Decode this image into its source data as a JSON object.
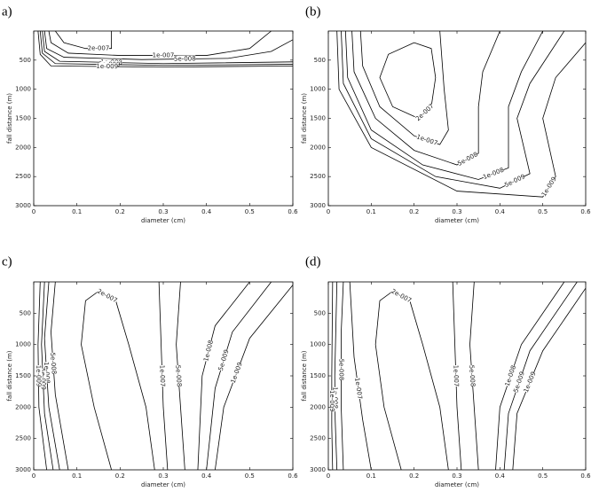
{
  "chart_data": [
    {
      "type": "contour",
      "panel_label": "a)",
      "xlabel": "diameter (cm)",
      "ylabel": "fall distance (m)",
      "color": "#000000",
      "xlim": [
        0,
        0.6
      ],
      "ylim": [
        3000,
        0
      ],
      "xticks": [
        0,
        0.1,
        0.2,
        0.3,
        0.4,
        0.5,
        0.6
      ],
      "yticks": [
        500,
        1000,
        1500,
        2000,
        2500,
        3000
      ],
      "series": [
        {
          "name": "2e-007",
          "x": [
            0.05,
            0.07,
            0.12,
            0.18,
            0.18
          ],
          "values": [
            0,
            200,
            300,
            300,
            0
          ]
        },
        {
          "name": "1e-007",
          "x": [
            0.035,
            0.04,
            0.08,
            0.2,
            0.4,
            0.5,
            0.55
          ],
          "values": [
            0,
            200,
            380,
            420,
            420,
            300,
            0
          ]
        },
        {
          "name": "5e-008",
          "x": [
            0.025,
            0.03,
            0.07,
            0.25,
            0.45,
            0.55,
            0.6
          ],
          "values": [
            0,
            300,
            450,
            490,
            470,
            350,
            150
          ]
        },
        {
          "name": "1e-008",
          "x": [
            0.02,
            0.025,
            0.06,
            0.3,
            0.6
          ],
          "values": [
            0,
            350,
            520,
            560,
            530
          ]
        },
        {
          "name": "5e-009",
          "x": [
            0.015,
            0.02,
            0.05,
            0.3,
            0.6
          ],
          "values": [
            0,
            380,
            560,
            590,
            570
          ]
        },
        {
          "name": "1e-009",
          "x": [
            0.01,
            0.015,
            0.04,
            0.3,
            0.6
          ],
          "values": [
            0,
            400,
            600,
            620,
            600
          ]
        }
      ]
    },
    {
      "type": "contour",
      "panel_label": "(b)",
      "xlabel": "diameter (cm)",
      "ylabel": "fall distance (m)",
      "color": "#000000",
      "xlim": [
        0,
        0.6
      ],
      "ylim": [
        3000,
        0
      ],
      "xticks": [
        0,
        0.1,
        0.2,
        0.3,
        0.4,
        0.5,
        0.6
      ],
      "yticks": [
        500,
        1000,
        1500,
        2000,
        2500,
        3000
      ],
      "series": [
        {
          "name": "2e-007",
          "x": [
            0.2,
            0.14,
            0.12,
            0.15,
            0.21,
            0.24,
            0.25,
            0.24,
            0.2
          ],
          "values": [
            200,
            400,
            800,
            1300,
            1500,
            1300,
            800,
            300,
            200
          ]
        },
        {
          "name": "1e-007",
          "x": [
            0.075,
            0.08,
            0.12,
            0.2,
            0.26,
            0.28,
            0.27,
            0.26
          ],
          "values": [
            0,
            600,
            1300,
            1800,
            1950,
            1700,
            1000,
            0
          ]
        },
        {
          "name": "5e-008",
          "x": [
            0.055,
            0.06,
            0.11,
            0.2,
            0.3,
            0.35,
            0.35,
            0.36,
            0.4
          ],
          "values": [
            0,
            700,
            1500,
            2050,
            2300,
            2100,
            1300,
            700,
            0
          ]
        },
        {
          "name": "1e-008",
          "x": [
            0.04,
            0.045,
            0.1,
            0.22,
            0.35,
            0.42,
            0.42,
            0.45,
            0.5
          ],
          "values": [
            0,
            800,
            1700,
            2300,
            2550,
            2350,
            1300,
            700,
            0
          ]
        },
        {
          "name": "5e-009",
          "x": [
            0.03,
            0.035,
            0.1,
            0.25,
            0.4,
            0.47,
            0.44,
            0.47,
            0.55
          ],
          "values": [
            0,
            900,
            1850,
            2500,
            2700,
            2450,
            1500,
            900,
            0
          ]
        },
        {
          "name": "1e-009",
          "x": [
            0.02,
            0.025,
            0.1,
            0.3,
            0.5,
            0.53,
            0.5,
            0.53,
            0.6
          ],
          "values": [
            0,
            1000,
            2000,
            2750,
            2850,
            2500,
            1500,
            800,
            200
          ]
        }
      ]
    },
    {
      "type": "contour",
      "panel_label": "c)",
      "xlabel": "diameter (cm)",
      "ylabel": "fall distance (m)",
      "color": "#000000",
      "xlim": [
        0,
        0.6
      ],
      "ylim": [
        3000,
        0
      ],
      "xticks": [
        0,
        0.1,
        0.2,
        0.3,
        0.4,
        0.5,
        0.6
      ],
      "yticks": [
        500,
        1000,
        1500,
        2000,
        2500,
        3000
      ],
      "series": [
        {
          "name": "2e-007",
          "x": [
            0.18,
            0.14,
            0.11,
            0.12,
            0.15,
            0.19,
            0.22,
            0.26,
            0.28
          ],
          "values": [
            3000,
            2000,
            1000,
            300,
            150,
            300,
            1000,
            2000,
            3000
          ]
        },
        {
          "name": "1e-007",
          "x": [
            0.29,
            0.295,
            0.3,
            0.31
          ],
          "values": [
            0,
            1000,
            2000,
            3000
          ]
        },
        {
          "name": "5e-008",
          "x": [
            0.34,
            0.33,
            0.34,
            0.35
          ],
          "values": [
            0,
            1000,
            2000,
            3000
          ]
        },
        {
          "name": "1e-008",
          "x": [
            0.5,
            0.42,
            0.39,
            0.38
          ],
          "values": [
            0,
            700,
            1500,
            3000
          ]
        },
        {
          "name": "5e-009",
          "x": [
            0.55,
            0.46,
            0.42,
            0.4
          ],
          "values": [
            0,
            800,
            1700,
            3000
          ]
        },
        {
          "name": "1e-009",
          "x": [
            0.6,
            0.5,
            0.44,
            0.42
          ],
          "values": [
            50,
            900,
            2000,
            3000
          ]
        },
        {
          "name": "5e-008",
          "x": [
            0.05,
            0.04,
            0.05,
            0.08
          ],
          "values": [
            0,
            800,
            1800,
            3000
          ]
        },
        {
          "name": "1e-008",
          "x": [
            0.035,
            0.025,
            0.035,
            0.06
          ],
          "values": [
            0,
            900,
            2000,
            3000
          ]
        },
        {
          "name": "5e-009",
          "x": [
            0.025,
            0.018,
            0.025,
            0.045
          ],
          "values": [
            0,
            1000,
            2100,
            3000
          ]
        },
        {
          "name": "1e-009",
          "x": [
            0.015,
            0.01,
            0.012,
            0.03
          ],
          "values": [
            0,
            1000,
            2000,
            3000
          ]
        }
      ]
    },
    {
      "type": "contour",
      "panel_label": "(d)",
      "xlabel": "diameter (cm)",
      "ylabel": "fall distance (m)",
      "color": "#000000",
      "xlim": [
        0,
        0.6
      ],
      "ylim": [
        3000,
        0
      ],
      "xticks": [
        0,
        0.1,
        0.2,
        0.3,
        0.4,
        0.5,
        0.6
      ],
      "yticks": [
        500,
        1000,
        1500,
        2000,
        2500,
        3000
      ],
      "series": [
        {
          "name": "2e-007",
          "x": [
            0.17,
            0.13,
            0.11,
            0.12,
            0.15,
            0.19,
            0.22,
            0.26,
            0.28
          ],
          "values": [
            3000,
            2000,
            1000,
            300,
            150,
            300,
            1000,
            2000,
            3000
          ]
        },
        {
          "name": "1e-007",
          "x": [
            0.29,
            0.295,
            0.3,
            0.31
          ],
          "values": [
            0,
            1000,
            2000,
            3000
          ]
        },
        {
          "name": "5e-008",
          "x": [
            0.34,
            0.33,
            0.34,
            0.35
          ],
          "values": [
            0,
            1000,
            2000,
            3000
          ]
        },
        {
          "name": "1e-008",
          "x": [
            0.55,
            0.45,
            0.4,
            0.39
          ],
          "values": [
            0,
            1000,
            2000,
            3000
          ]
        },
        {
          "name": "5e-009",
          "x": [
            0.58,
            0.47,
            0.42,
            0.41
          ],
          "values": [
            0,
            1100,
            2100,
            3000
          ]
        },
        {
          "name": "1e-009",
          "x": [
            0.6,
            0.5,
            0.44,
            0.43
          ],
          "values": [
            100,
            1100,
            2100,
            3000
          ]
        },
        {
          "name": "1e-007",
          "x": [
            0.05,
            0.06,
            0.08,
            0.1
          ],
          "values": [
            0,
            1200,
            2200,
            3000
          ]
        },
        {
          "name": "5e-008",
          "x": [
            0.035,
            0.03,
            0.03,
            0.035
          ],
          "values": [
            0,
            800,
            2000,
            3000
          ]
        },
        {
          "name": "1e-008",
          "x": [
            0.02,
            0.015,
            0.016,
            0.02
          ],
          "values": [
            0,
            1500,
            2200,
            3000
          ]
        },
        {
          "name": "1e-009",
          "x": [
            0.01,
            0.008,
            0.008,
            0.01
          ],
          "values": [
            0,
            1500,
            2300,
            3000
          ]
        }
      ]
    }
  ]
}
